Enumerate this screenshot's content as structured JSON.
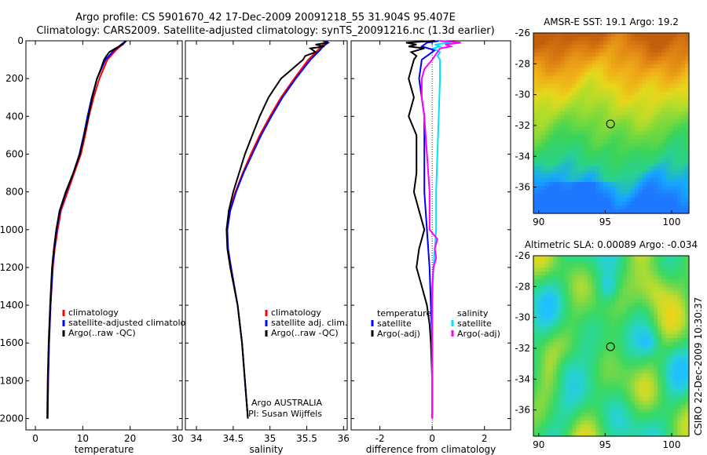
{
  "header": {
    "line1": "Argo profile: CS 5901670_42 17-Dec-2009 20091218_55 31.904S 95.407E",
    "line2": "Climatology: CARS2009. Satellite-adjusted climatology: synTS_20091216.nc (1.3d earlier)"
  },
  "chart_data": [
    {
      "type": "line",
      "title": "",
      "xlabel": "temperature",
      "ylabel": "",
      "xlim": [
        -2,
        31
      ],
      "ylim": [
        2060,
        0
      ],
      "x_ticks": [
        0,
        10,
        20,
        30
      ],
      "y_ticks": [
        0,
        200,
        400,
        600,
        800,
        1000,
        1200,
        1400,
        1600,
        1800,
        2000
      ],
      "legend": {
        "placement": "lower-middle",
        "entries": [
          "climatology",
          "satellite-adjusted climatology",
          "Argo(..raw -QC)"
        ]
      },
      "series": [
        {
          "name": "climatology",
          "color": "#ff0000",
          "depth": [
            10,
            50,
            100,
            200,
            300,
            400,
            500,
            600,
            700,
            800,
            900,
            1000,
            1100,
            1200,
            1400,
            1600,
            1800,
            2000
          ],
          "values": [
            18.8,
            17.0,
            15.2,
            13.5,
            12.3,
            11.3,
            10.5,
            9.6,
            8.2,
            6.8,
            5.4,
            4.7,
            4.1,
            3.7,
            3.2,
            2.9,
            2.7,
            2.6
          ]
        },
        {
          "name": "satellite-adjusted climatology",
          "color": "#0000ff",
          "depth": [
            0,
            10,
            50,
            100,
            200,
            300,
            400,
            500,
            600,
            700,
            800,
            900,
            1000,
            1100,
            1200,
            1400,
            1600,
            1800,
            2000
          ],
          "values": [
            19.1,
            18.6,
            16.6,
            14.8,
            13.0,
            11.9,
            11.0,
            10.2,
            9.3,
            8.0,
            6.5,
            5.2,
            4.5,
            4.0,
            3.6,
            3.2,
            2.9,
            2.7,
            2.6
          ]
        },
        {
          "name": "Argo(..raw -QC)",
          "color": "#000000",
          "depth": [
            0,
            20,
            40,
            60,
            80,
            100,
            150,
            200,
            300,
            400,
            500,
            600,
            700,
            800,
            900,
            1000,
            1100,
            1200,
            1400,
            1600,
            1800,
            2000
          ],
          "values": [
            19.2,
            18.4,
            16.9,
            15.6,
            15.0,
            14.5,
            13.8,
            13.0,
            12.0,
            11.2,
            10.3,
            9.4,
            8.0,
            6.4,
            5.1,
            4.4,
            3.9,
            3.5,
            3.1,
            2.8,
            2.6,
            2.5
          ]
        }
      ],
      "annotations": []
    },
    {
      "type": "line",
      "title": "",
      "xlabel": "salinity",
      "ylabel": "",
      "xlim": [
        33.85,
        36.05
      ],
      "ylim": [
        2060,
        0
      ],
      "x_ticks": [
        34,
        34.5,
        35,
        35.5,
        36
      ],
      "legend": {
        "placement": "lower-right",
        "entries": [
          "climatology",
          "satellite adj. clim.",
          "Argo(..raw -QC)"
        ]
      },
      "series": [
        {
          "name": "climatology",
          "color": "#ff0000",
          "depth": [
            10,
            50,
            100,
            200,
            300,
            400,
            500,
            600,
            700,
            800,
            900,
            1000,
            1100,
            1200,
            1400,
            1600,
            1800,
            2000
          ],
          "values": [
            35.75,
            35.65,
            35.52,
            35.33,
            35.15,
            35.0,
            34.86,
            34.74,
            34.63,
            34.53,
            34.45,
            34.41,
            34.43,
            34.47,
            34.56,
            34.62,
            34.66,
            34.7
          ]
        },
        {
          "name": "satellite adj. clim.",
          "color": "#0000ff",
          "depth": [
            0,
            10,
            30,
            50,
            100,
            200,
            300,
            400,
            500,
            600,
            700,
            800,
            900,
            1000,
            1100,
            1200,
            1400,
            1600,
            1800,
            2000
          ],
          "values": [
            35.77,
            35.79,
            35.72,
            35.68,
            35.55,
            35.35,
            35.17,
            35.02,
            34.88,
            34.76,
            34.64,
            34.54,
            34.46,
            34.42,
            34.43,
            34.47,
            34.56,
            34.62,
            34.66,
            34.7
          ]
        },
        {
          "name": "Argo(..raw -QC)",
          "color": "#000000",
          "depth": [
            0,
            10,
            20,
            30,
            40,
            60,
            80,
            100,
            150,
            200,
            300,
            400,
            500,
            600,
            700,
            800,
            900,
            1000,
            1100,
            1200,
            1400,
            1600,
            1800,
            2000
          ],
          "values": [
            35.72,
            35.78,
            35.62,
            35.74,
            35.55,
            35.62,
            35.48,
            35.45,
            35.3,
            35.15,
            34.98,
            34.86,
            34.76,
            34.66,
            34.58,
            34.5,
            34.44,
            34.41,
            34.42,
            34.46,
            34.56,
            34.62,
            34.66,
            34.7
          ]
        }
      ],
      "annotations": [
        "Argo AUSTRALIA",
        "PI: Susan Wijffels"
      ]
    },
    {
      "type": "line",
      "title": "",
      "xlabel": "difference from climatology",
      "ylabel": "",
      "xlim": [
        -3.1,
        3.0
      ],
      "ylim": [
        2060,
        0
      ],
      "x_ticks": [
        -2,
        0,
        2
      ],
      "legend": {
        "placement": "lower-middle",
        "entries": [
          "temperature",
          "satellite",
          "Argo(-adj)",
          "salinity",
          "satellite",
          "Argo(-adj)"
        ]
      },
      "series": [
        {
          "name": "temperature satellite",
          "color": "#0000ff",
          "depth": [
            0,
            10,
            30,
            50,
            80,
            100,
            200,
            400,
            600,
            800,
            1000,
            1200,
            1400,
            1600,
            1800,
            2000
          ],
          "values": [
            0.3,
            -0.2,
            -0.4,
            0.1,
            -0.2,
            -0.4,
            -0.5,
            -0.3,
            -0.3,
            -0.3,
            -0.2,
            -0.1,
            -0.05,
            0.0,
            0.0,
            0.0
          ]
        },
        {
          "name": "temperature Argo(-adj)",
          "color": "#000000",
          "depth": [
            0,
            10,
            20,
            30,
            40,
            60,
            80,
            100,
            150,
            200,
            300,
            400,
            500,
            600,
            700,
            800,
            900,
            1000,
            1100,
            1200,
            1300,
            1400,
            1500,
            1600,
            1800,
            2000
          ],
          "values": [
            0.1,
            -1.0,
            -0.6,
            -0.9,
            -0.3,
            -0.8,
            -0.6,
            -0.7,
            -0.8,
            -0.9,
            -0.7,
            -0.9,
            -0.6,
            -0.6,
            -0.6,
            -0.7,
            -0.5,
            -0.3,
            -0.5,
            -0.6,
            -0.4,
            -0.2,
            -0.1,
            -0.05,
            0.0,
            0.0
          ]
        },
        {
          "name": "salinity satellite",
          "color": "#00e0ff",
          "depth": [
            0,
            10,
            20,
            30,
            40,
            60,
            80,
            100,
            200,
            400,
            600,
            800,
            1000,
            1200,
            1400,
            1600,
            1800,
            2000
          ],
          "values": [
            0.25,
            0.7,
            0.1,
            0.3,
            0.05,
            0.3,
            0.2,
            0.3,
            0.3,
            0.25,
            0.2,
            0.15,
            0.15,
            0.05,
            0.0,
            0.0,
            0.0,
            0.0
          ]
        },
        {
          "name": "salinity Argo(-adj)",
          "color": "#ff00ff",
          "depth": [
            0,
            10,
            20,
            30,
            40,
            60,
            80,
            100,
            150,
            200,
            300,
            400,
            500,
            600,
            700,
            800,
            900,
            1000,
            1050,
            1100,
            1150,
            1200,
            1300,
            1400,
            1600,
            1800,
            2000
          ],
          "values": [
            0.3,
            1.1,
            0.5,
            0.7,
            0.3,
            0.2,
            0.1,
            0.0,
            -0.3,
            -0.4,
            -0.4,
            -0.3,
            -0.25,
            -0.2,
            -0.15,
            -0.1,
            -0.1,
            -0.1,
            0.2,
            0.1,
            0.15,
            0.05,
            0.0,
            0.0,
            0.0,
            0.0,
            0.0
          ]
        }
      ],
      "annotations": []
    },
    {
      "type": "heatmap",
      "title": "AMSR-E SST: 19.1 Argo: 19.2",
      "xlabel": "",
      "ylabel": "",
      "xlim": [
        89.6,
        101.3
      ],
      "ylim": [
        -37.7,
        -26
      ],
      "x_ticks": [
        90,
        95,
        100
      ],
      "y_ticks": [
        -26,
        -28,
        -30,
        -32,
        -34,
        -36
      ],
      "marker": {
        "lon": 95.4,
        "lat": -31.9
      },
      "palette": [
        "#1e78ff",
        "#16a6ff",
        "#2ad28a",
        "#3ad35a",
        "#6fd840",
        "#b0dc2c",
        "#e6d81c",
        "#f0b018",
        "#e08414",
        "#c25e0c"
      ]
    },
    {
      "type": "heatmap",
      "title": "Altimetric SLA: 0.00089 Argo: -0.034",
      "xlabel": "",
      "ylabel": "",
      "xlim": [
        89.6,
        101.3
      ],
      "ylim": [
        -37.7,
        -26
      ],
      "x_ticks": [
        90,
        95,
        100
      ],
      "y_ticks": [
        -26,
        -28,
        -30,
        -32,
        -34,
        -36
      ],
      "marker": {
        "lon": 95.4,
        "lat": -31.9
      },
      "palette": [
        "#20c0ff",
        "#28d2d0",
        "#2cd890",
        "#3cd860",
        "#7ad848",
        "#c2dc2c",
        "#f0d41c",
        "#f4a818",
        "#e07a12"
      ]
    }
  ],
  "credit": "CSIRO 22-Dec-2009 10:30:37"
}
